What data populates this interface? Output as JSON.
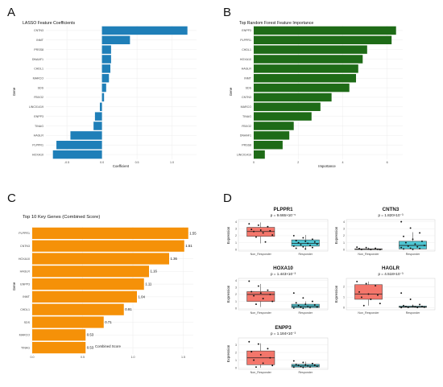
{
  "panels": [
    {
      "letter": "A"
    },
    {
      "letter": "B"
    },
    {
      "letter": "C"
    },
    {
      "letter": "D"
    }
  ],
  "chart_data": [
    {
      "panel": "A",
      "type": "bar",
      "orientation": "horizontal",
      "title": "LASSO Feature Coefficients",
      "xlabel": "Coefficient",
      "ylabel": "Gene",
      "categories": [
        "CNTN3",
        "INMT",
        "PRSS8",
        "DNAAF1",
        "CHDL1",
        "MARCO",
        "SDS",
        "FBXO2",
        "LINC01419",
        "ENPP3",
        "TINAG",
        "HAGLR",
        "PLPPR1",
        "HOXA10"
      ],
      "values": [
        1.22,
        0.4,
        0.13,
        0.13,
        0.12,
        0.1,
        0.06,
        0.03,
        -0.03,
        -0.1,
        -0.12,
        -0.45,
        -0.65,
        -0.7
      ],
      "xlim": [
        -0.8,
        1.35
      ],
      "xticks": [
        -0.5,
        0.0,
        0.5,
        1.0
      ],
      "tick_labels": [
        "-0.5",
        "0.0",
        "0.5",
        "1.0"
      ],
      "color": "#1f7fb8",
      "grid": true
    },
    {
      "panel": "B",
      "type": "bar",
      "orientation": "horizontal",
      "title": "Top Random Forest Feature Importance",
      "xlabel": "Importance",
      "ylabel": "Gene",
      "categories": [
        "ENPP3",
        "PLPPR1",
        "CHDL1",
        "HOXA10",
        "HAGLR",
        "INMT",
        "SDS",
        "CNTN3",
        "MARCO",
        "TINAG",
        "FBXO2",
        "DNAAF1",
        "PRSS8",
        "LINC01419"
      ],
      "values": [
        6.4,
        6.2,
        5.1,
        4.9,
        4.7,
        4.6,
        4.3,
        3.5,
        3.0,
        2.6,
        1.8,
        1.6,
        1.3,
        0.5
      ],
      "xlim": [
        0,
        6.7
      ],
      "xticks": [
        0,
        2,
        4,
        6
      ],
      "tick_labels": [
        "0",
        "2",
        "4",
        "6"
      ],
      "color": "#1e6b17",
      "grid": true
    },
    {
      "panel": "C",
      "type": "bar",
      "orientation": "horizontal",
      "title": "Top 10 Key Genes (Combined Score)",
      "xlabel": "Combined Score",
      "ylabel": "Gene",
      "categories": [
        "PLPPR1",
        "CNTN3",
        "HOXA10",
        "HAGLR",
        "ENPP3",
        "INMT",
        "CHDL1",
        "SDS",
        "MARCO",
        "TINAG"
      ],
      "values": [
        1.55,
        1.51,
        1.36,
        1.16,
        1.11,
        1.04,
        0.91,
        0.71,
        0.53,
        0.53
      ],
      "value_labels": [
        "1.55",
        "1.51",
        "1.36",
        "1.16",
        "1.11",
        "1.04",
        "0.91",
        "0.71",
        "0.53",
        "0.53"
      ],
      "xlim": [
        0,
        1.6
      ],
      "xticks": [
        0.0,
        0.5,
        1.0,
        1.5
      ],
      "tick_labels": [
        "0.0",
        "0.5",
        "1.0",
        "1.5"
      ],
      "color": "#f59108",
      "grid": true
    },
    {
      "panel": "D",
      "type": "box",
      "ylabel": "Expression",
      "groups": [
        "Non_Responder",
        "Responder"
      ],
      "group_colors": [
        "#f4766b",
        "#4ec5d2"
      ],
      "plots": [
        {
          "title": "PLPPR1",
          "pvalue": "p = 9.665×10⁻⁵",
          "ylim": [
            -0.2,
            4.3
          ],
          "yticks": [
            0,
            1,
            2,
            3,
            4
          ],
          "tick_labels": [
            "0",
            "1",
            "2",
            "3",
            "4"
          ],
          "boxes": [
            {
              "min": 0.9,
              "q1": 1.9,
              "median": 2.6,
              "q3": 3.2,
              "max": 3.9,
              "points": [
                3.7,
                3.5,
                3.3,
                2.9,
                2.8,
                2.7,
                2.6,
                2.4,
                2.1,
                1.8,
                1.1
              ]
            },
            {
              "min": 0.0,
              "q1": 0.5,
              "median": 0.9,
              "q3": 1.4,
              "max": 2.1,
              "points": [
                2.0,
                1.7,
                1.5,
                1.3,
                1.2,
                1.1,
                1.0,
                0.9,
                0.8,
                0.7,
                0.6,
                0.5,
                0.4,
                0.3,
                0.2,
                0.1
              ]
            }
          ]
        },
        {
          "title": "CNTN3",
          "pvalue": "p = 1.820×10⁻³",
          "ylim": [
            -0.2,
            4.3
          ],
          "yticks": [
            0,
            1,
            2,
            3,
            4
          ],
          "tick_labels": [
            "0",
            "1",
            "2",
            "3",
            "4"
          ],
          "boxes": [
            {
              "min": 0.0,
              "q1": 0.02,
              "median": 0.05,
              "q3": 0.1,
              "max": 0.3,
              "points": [
                0.35,
                0.3,
                0.2,
                0.15,
                0.08,
                0.05,
                0.03,
                0.02,
                0.01
              ]
            },
            {
              "min": 0.0,
              "q1": 0.1,
              "median": 0.6,
              "q3": 1.2,
              "max": 2.5,
              "points": [
                4.0,
                3.1,
                2.4,
                1.9,
                1.5,
                1.2,
                1.0,
                0.8,
                0.6,
                0.5,
                0.4,
                0.3,
                0.2,
                0.15,
                0.1,
                0.05
              ]
            }
          ]
        },
        {
          "title": "HOXA10",
          "pvalue": "p = 1.443×10⁻³",
          "ylim": [
            -0.2,
            4.3
          ],
          "yticks": [
            0,
            1,
            2,
            3,
            4
          ],
          "tick_labels": [
            "0",
            "1",
            "2",
            "3",
            "4"
          ],
          "boxes": [
            {
              "min": 0.2,
              "q1": 1.0,
              "median": 2.0,
              "q3": 2.4,
              "max": 3.5,
              "points": [
                3.9,
                3.2,
                2.6,
                2.4,
                2.2,
                2.0,
                1.8,
                1.4,
                1.0,
                0.6
              ]
            },
            {
              "min": 0.0,
              "q1": 0.1,
              "median": 0.3,
              "q3": 0.6,
              "max": 1.0,
              "points": [
                2.2,
                1.5,
                1.0,
                0.8,
                0.6,
                0.5,
                0.4,
                0.3,
                0.2,
                0.15,
                0.1,
                0.05,
                0.02
              ]
            }
          ]
        },
        {
          "title": "HAGLR",
          "pvalue": "p = 4.518×10⁻³",
          "ylim": [
            -0.2,
            2.8
          ],
          "yticks": [
            0,
            1,
            2
          ],
          "tick_labels": [
            "0",
            "1",
            "2"
          ],
          "boxes": [
            {
              "min": 0.2,
              "q1": 0.8,
              "median": 1.3,
              "q3": 2.2,
              "max": 2.5,
              "points": [
                2.5,
                2.3,
                2.1,
                1.5,
                1.3,
                1.2,
                1.0,
                0.8,
                0.4,
                0.2
              ]
            },
            {
              "min": 0.0,
              "q1": 0.03,
              "median": 0.08,
              "q3": 0.15,
              "max": 0.3,
              "points": [
                1.4,
                0.8,
                0.3,
                0.2,
                0.15,
                0.12,
                0.1,
                0.08,
                0.05,
                0.03,
                0.02,
                0.01
              ]
            }
          ]
        },
        {
          "title": "ENPP3",
          "pvalue": "p = 1.184×10⁻³",
          "ylim": [
            -0.2,
            3.9
          ],
          "yticks": [
            0,
            1,
            2,
            3
          ],
          "tick_labels": [
            "0",
            "1",
            "2",
            "3"
          ],
          "boxes": [
            {
              "min": 0.0,
              "q1": 0.4,
              "median": 1.3,
              "q3": 2.2,
              "max": 3.2,
              "points": [
                3.4,
                3.1,
                2.5,
                2.1,
                1.7,
                1.3,
                1.0,
                0.6,
                0.3,
                0.1
              ]
            },
            {
              "min": 0.0,
              "q1": 0.1,
              "median": 0.25,
              "q3": 0.45,
              "max": 0.8,
              "points": [
                0.9,
                0.7,
                0.55,
                0.45,
                0.4,
                0.35,
                0.3,
                0.25,
                0.2,
                0.15,
                0.1,
                0.08,
                0.05
              ]
            }
          ]
        }
      ]
    }
  ]
}
